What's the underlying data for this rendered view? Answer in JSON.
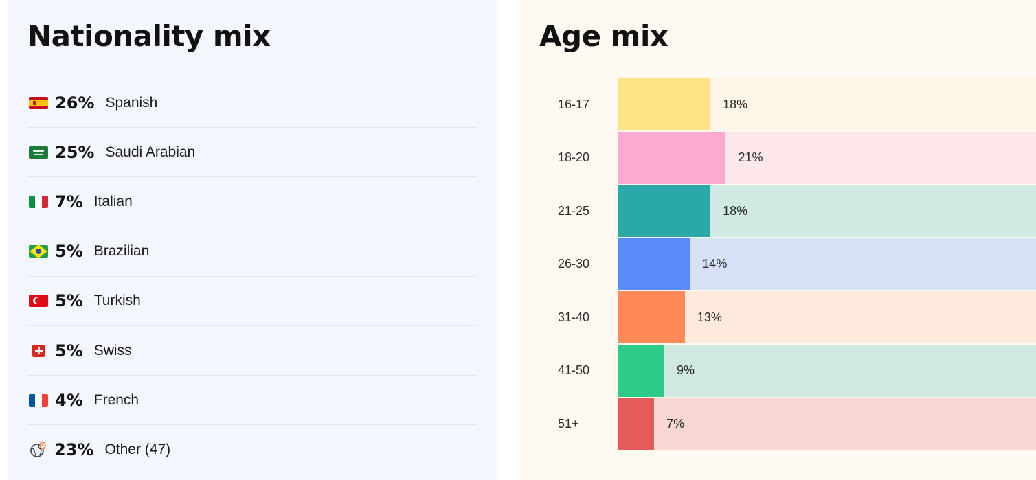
{
  "nationality": {
    "title": "Nationality mix",
    "items": [
      {
        "flag": "spain-flag-icon",
        "percent": "26%",
        "name": "Spanish"
      },
      {
        "flag": "saudi-arabia-flag-icon",
        "percent": "25%",
        "name": "Saudi Arabian"
      },
      {
        "flag": "italy-flag-icon",
        "percent": "7%",
        "name": "Italian"
      },
      {
        "flag": "brazil-flag-icon",
        "percent": "5%",
        "name": "Brazilian"
      },
      {
        "flag": "turkey-flag-icon",
        "percent": "5%",
        "name": "Turkish"
      },
      {
        "flag": "switzerland-flag-icon",
        "percent": "5%",
        "name": "Swiss"
      },
      {
        "flag": "france-flag-icon",
        "percent": "4%",
        "name": "French"
      },
      {
        "flag": "globe-icon",
        "percent": "23%",
        "name": "Other (47)"
      }
    ]
  },
  "age": {
    "title": "Age mix",
    "items": [
      {
        "label": "16-17",
        "percent": "18%",
        "value": 18,
        "fill": "#ffe285",
        "track": "#fdf5e6"
      },
      {
        "label": "18-20",
        "percent": "21%",
        "value": 21,
        "fill": "#ffaad0",
        "track": "#ffe8ec"
      },
      {
        "label": "21-25",
        "percent": "18%",
        "value": 18,
        "fill": "#2ba9a8",
        "track": "#d0e9e3"
      },
      {
        "label": "26-30",
        "percent": "14%",
        "value": 14,
        "fill": "#5a8bfd",
        "track": "#d7e1f8"
      },
      {
        "label": "31-40",
        "percent": "13%",
        "value": 13,
        "fill": "#ff8a57",
        "track": "#fdeadc"
      },
      {
        "label": "41-50",
        "percent": "9%",
        "value": 9,
        "fill": "#2ecb88",
        "track": "#cfe9e0"
      },
      {
        "label": "51+",
        "percent": "7%",
        "value": 7,
        "fill": "#e55b5b",
        "track": "#f8d6d1"
      }
    ]
  }
}
